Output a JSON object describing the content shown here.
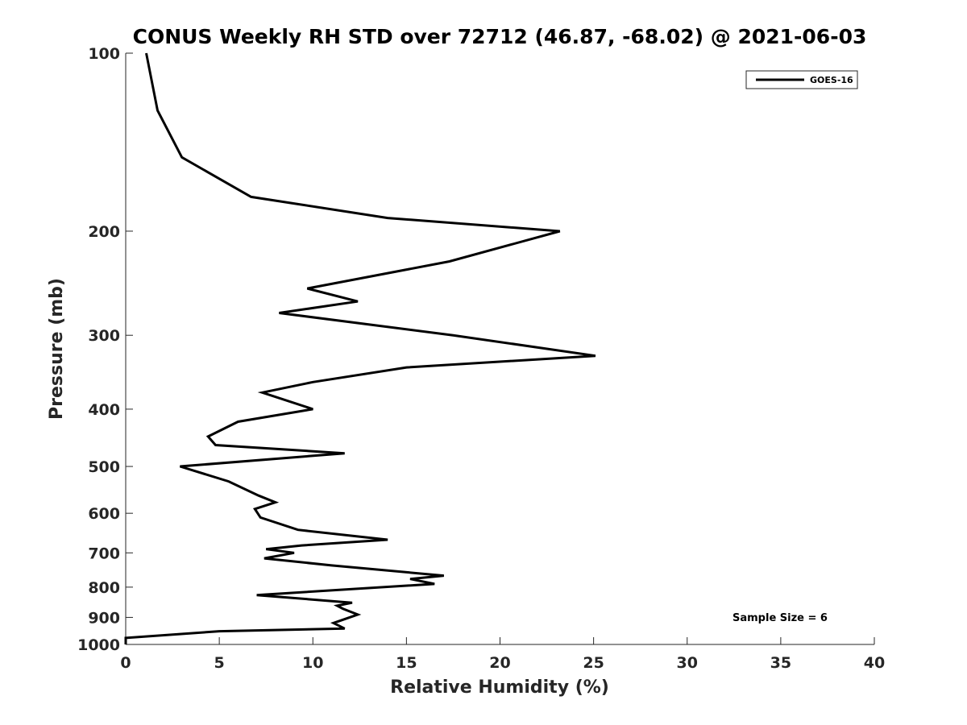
{
  "chart_data": {
    "type": "line",
    "title": "CONUS Weekly RH STD over 72712 (46.87, -68.02) @ 2021-06-03",
    "xlabel": "Relative Humidity (%)",
    "ylabel": "Pressure (mb)",
    "xlim": [
      0,
      40
    ],
    "ylim": [
      100,
      1000
    ],
    "y_scale": "log",
    "y_reversed": true,
    "x_ticks": [
      "0",
      "5",
      "10",
      "15",
      "20",
      "25",
      "30",
      "35",
      "40"
    ],
    "y_ticks": [
      "100",
      "200",
      "300",
      "400",
      "500",
      "600",
      "700",
      "800",
      "900",
      "1000"
    ],
    "grid": false,
    "legend_position": "top-right",
    "series": [
      {
        "name": "GOES-16",
        "color": "#000000",
        "points": [
          [
            1.1,
            100
          ],
          [
            1.7,
            125
          ],
          [
            3.0,
            150
          ],
          [
            6.7,
            175
          ],
          [
            14.0,
            190
          ],
          [
            23.2,
            200
          ],
          [
            17.3,
            225
          ],
          [
            9.7,
            250
          ],
          [
            12.4,
            263
          ],
          [
            8.2,
            275
          ],
          [
            17.5,
            300
          ],
          [
            25.1,
            325
          ],
          [
            15.0,
            340
          ],
          [
            10.0,
            360
          ],
          [
            7.3,
            375
          ],
          [
            10.0,
            400
          ],
          [
            6.0,
            420
          ],
          [
            4.4,
            445
          ],
          [
            4.8,
            460
          ],
          [
            11.7,
            475
          ],
          [
            2.9,
            500
          ],
          [
            5.5,
            530
          ],
          [
            7.1,
            560
          ],
          [
            8.0,
            575
          ],
          [
            6.9,
            590
          ],
          [
            7.2,
            610
          ],
          [
            9.2,
            640
          ],
          [
            14.0,
            665
          ],
          [
            9.4,
            680
          ],
          [
            7.5,
            690
          ],
          [
            9.0,
            700
          ],
          [
            7.4,
            715
          ],
          [
            11.0,
            735
          ],
          [
            17.0,
            765
          ],
          [
            15.2,
            775
          ],
          [
            16.5,
            790
          ],
          [
            7.0,
            825
          ],
          [
            12.1,
            850
          ],
          [
            11.3,
            860
          ],
          [
            11.6,
            870
          ],
          [
            12.4,
            890
          ],
          [
            11.1,
            920
          ],
          [
            11.7,
            940
          ],
          [
            5.0,
            950
          ],
          [
            0.0,
            975
          ],
          [
            0.0,
            1000
          ]
        ]
      }
    ]
  },
  "annotation": "Sample Size = 6"
}
